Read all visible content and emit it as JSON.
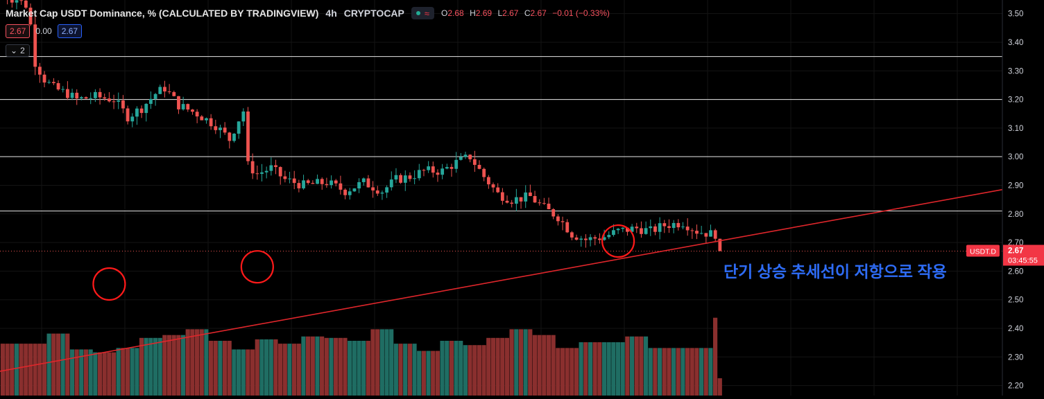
{
  "header": {
    "title": "Market Cap USDT Dominance, % (CALCULATED BY TRADINGVIEW)",
    "timeframe": "4h",
    "exchange": "CRYPTOCAP",
    "wave_icon_label": "≈",
    "ohlc": [
      {
        "label": "O",
        "value": "2.68"
      },
      {
        "label": "H",
        "value": "2.69"
      },
      {
        "label": "L",
        "value": "2.67"
      },
      {
        "label": "C",
        "value": "2.67"
      }
    ],
    "change": "−0.01 (−0.33%)"
  },
  "inputs": {
    "value_a": "2.67",
    "value_b": "0.00",
    "value_c": "2.67"
  },
  "collapse": {
    "count": "2"
  },
  "price_label": {
    "symbol": "USDT.D",
    "price": "2.67",
    "countdown": "03:45:55"
  },
  "annotation": "단기 상승 추세선이 저항으로 작용",
  "colors": {
    "up": "#26a69a",
    "down": "#ef5350",
    "vol_up": "#1f6d63",
    "vol_down": "#8a2f2e",
    "trendline": "#e0262b",
    "circle": "#ff1a1a",
    "annotation": "#2e6cf6"
  },
  "chart_data": {
    "type": "candlestick",
    "ylim": [
      2.17,
      3.55
    ],
    "y_ticks": [
      "3.50",
      "3.40",
      "3.30",
      "3.20",
      "3.10",
      "3.00",
      "2.90",
      "2.80",
      "2.70",
      "2.60",
      "2.50",
      "2.40",
      "2.30",
      "2.20"
    ],
    "horizontal_lines": [
      3.35,
      3.2,
      3.0,
      2.81
    ],
    "current_price": 2.67,
    "trendline": {
      "start": {
        "x": 0,
        "y": 2.25
      },
      "end": {
        "x": 156,
        "y": 2.885
      }
    },
    "touch_circles": [
      {
        "x": 23,
        "y": 2.555
      },
      {
        "x": 55,
        "y": 2.615
      },
      {
        "x": 133,
        "y": 2.705
      }
    ],
    "candles_count": 156,
    "close_path": [
      [
        0,
        3.56
      ],
      [
        3,
        3.55
      ],
      [
        5,
        3.53
      ],
      [
        6,
        3.46
      ],
      [
        7,
        3.33
      ],
      [
        9,
        3.27
      ],
      [
        11,
        3.24
      ],
      [
        14,
        3.22
      ],
      [
        16,
        3.2
      ],
      [
        20,
        3.21
      ],
      [
        24,
        3.2
      ],
      [
        27,
        3.14
      ],
      [
        30,
        3.17
      ],
      [
        33,
        3.22
      ],
      [
        35,
        3.24
      ],
      [
        38,
        3.18
      ],
      [
        42,
        3.15
      ],
      [
        46,
        3.11
      ],
      [
        49,
        3.06
      ],
      [
        51,
        3.13
      ],
      [
        52,
        3.16
      ],
      [
        53,
        2.97
      ],
      [
        55,
        2.94
      ],
      [
        58,
        2.96
      ],
      [
        61,
        2.92
      ],
      [
        65,
        2.9
      ],
      [
        70,
        2.91
      ],
      [
        74,
        2.88
      ],
      [
        78,
        2.91
      ],
      [
        82,
        2.88
      ],
      [
        85,
        2.92
      ],
      [
        88,
        2.93
      ],
      [
        91,
        2.95
      ],
      [
        95,
        2.95
      ],
      [
        98,
        2.98
      ],
      [
        101,
        3.0
      ],
      [
        104,
        2.93
      ],
      [
        107,
        2.87
      ],
      [
        110,
        2.85
      ],
      [
        114,
        2.86
      ],
      [
        117,
        2.82
      ],
      [
        120,
        2.79
      ],
      [
        123,
        2.73
      ],
      [
        126,
        2.71
      ],
      [
        130,
        2.72
      ],
      [
        133,
        2.74
      ],
      [
        137,
        2.75
      ],
      [
        140,
        2.74
      ],
      [
        143,
        2.76
      ],
      [
        147,
        2.77
      ],
      [
        150,
        2.74
      ],
      [
        153,
        2.73
      ]
    ],
    "candles": [],
    "volume": []
  }
}
